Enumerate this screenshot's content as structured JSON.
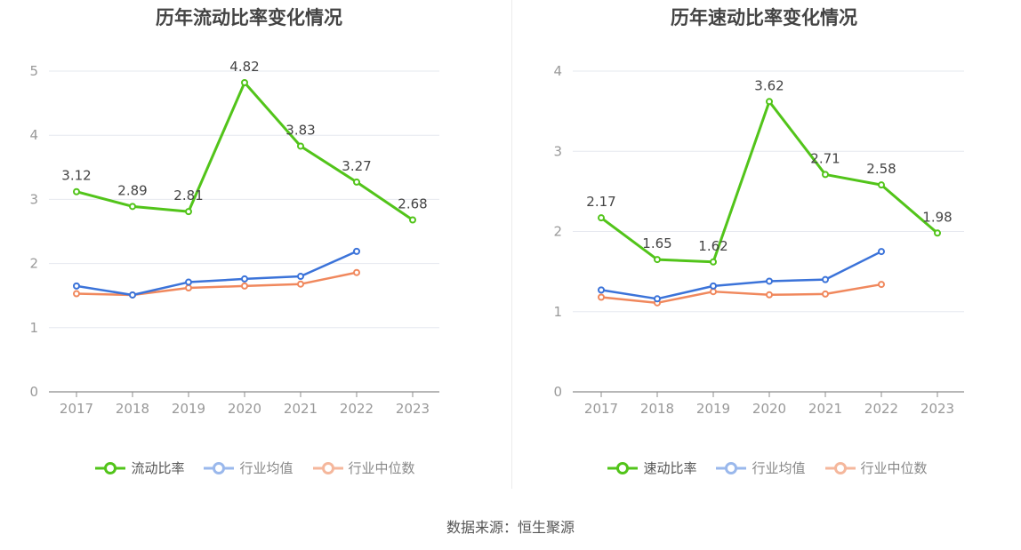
{
  "source_text": "数据来源：恒生聚源",
  "colors": {
    "ratio": "#52c41a",
    "industry_avg": "#3b73d9",
    "industry_median": "#f0885d",
    "grid": "#e6e8ef",
    "axis": "#8c8c8c",
    "tick_text": "#999999",
    "label_text": "#444444"
  },
  "chart_data": [
    {
      "type": "line",
      "title": "历年流动比率变化情况",
      "categories": [
        "2017",
        "2018",
        "2019",
        "2020",
        "2021",
        "2022",
        "2023"
      ],
      "ylim": [
        0,
        5
      ],
      "yticks": [
        0,
        1,
        2,
        3,
        4,
        5
      ],
      "grid": true,
      "legend_position": "bottom",
      "series": [
        {
          "name": "流动比率",
          "values": [
            3.12,
            2.89,
            2.81,
            4.82,
            3.83,
            3.27,
            2.68
          ],
          "labels": [
            "3.12",
            "2.89",
            "2.81",
            "4.82",
            "3.83",
            "3.27",
            "2.68"
          ]
        },
        {
          "name": "行业均值",
          "values": [
            1.65,
            1.51,
            1.71,
            1.76,
            1.8,
            2.19,
            null
          ]
        },
        {
          "name": "行业中位数",
          "values": [
            1.53,
            1.51,
            1.62,
            1.65,
            1.68,
            1.86,
            null
          ]
        }
      ]
    },
    {
      "type": "line",
      "title": "历年速动比率变化情况",
      "categories": [
        "2017",
        "2018",
        "2019",
        "2020",
        "2021",
        "2022",
        "2023"
      ],
      "ylim": [
        0,
        4
      ],
      "yticks": [
        0,
        1,
        2,
        3,
        4
      ],
      "grid": true,
      "legend_position": "bottom",
      "series": [
        {
          "name": "速动比率",
          "values": [
            2.17,
            1.65,
            1.62,
            3.62,
            2.71,
            2.58,
            1.98
          ],
          "labels": [
            "2.17",
            "1.65",
            "1.62",
            "3.62",
            "2.71",
            "2.58",
            "1.98"
          ]
        },
        {
          "name": "行业均值",
          "values": [
            1.27,
            1.16,
            1.32,
            1.38,
            1.4,
            1.75,
            null
          ]
        },
        {
          "name": "行业中位数",
          "values": [
            1.18,
            1.11,
            1.25,
            1.21,
            1.22,
            1.34,
            null
          ]
        }
      ]
    }
  ]
}
